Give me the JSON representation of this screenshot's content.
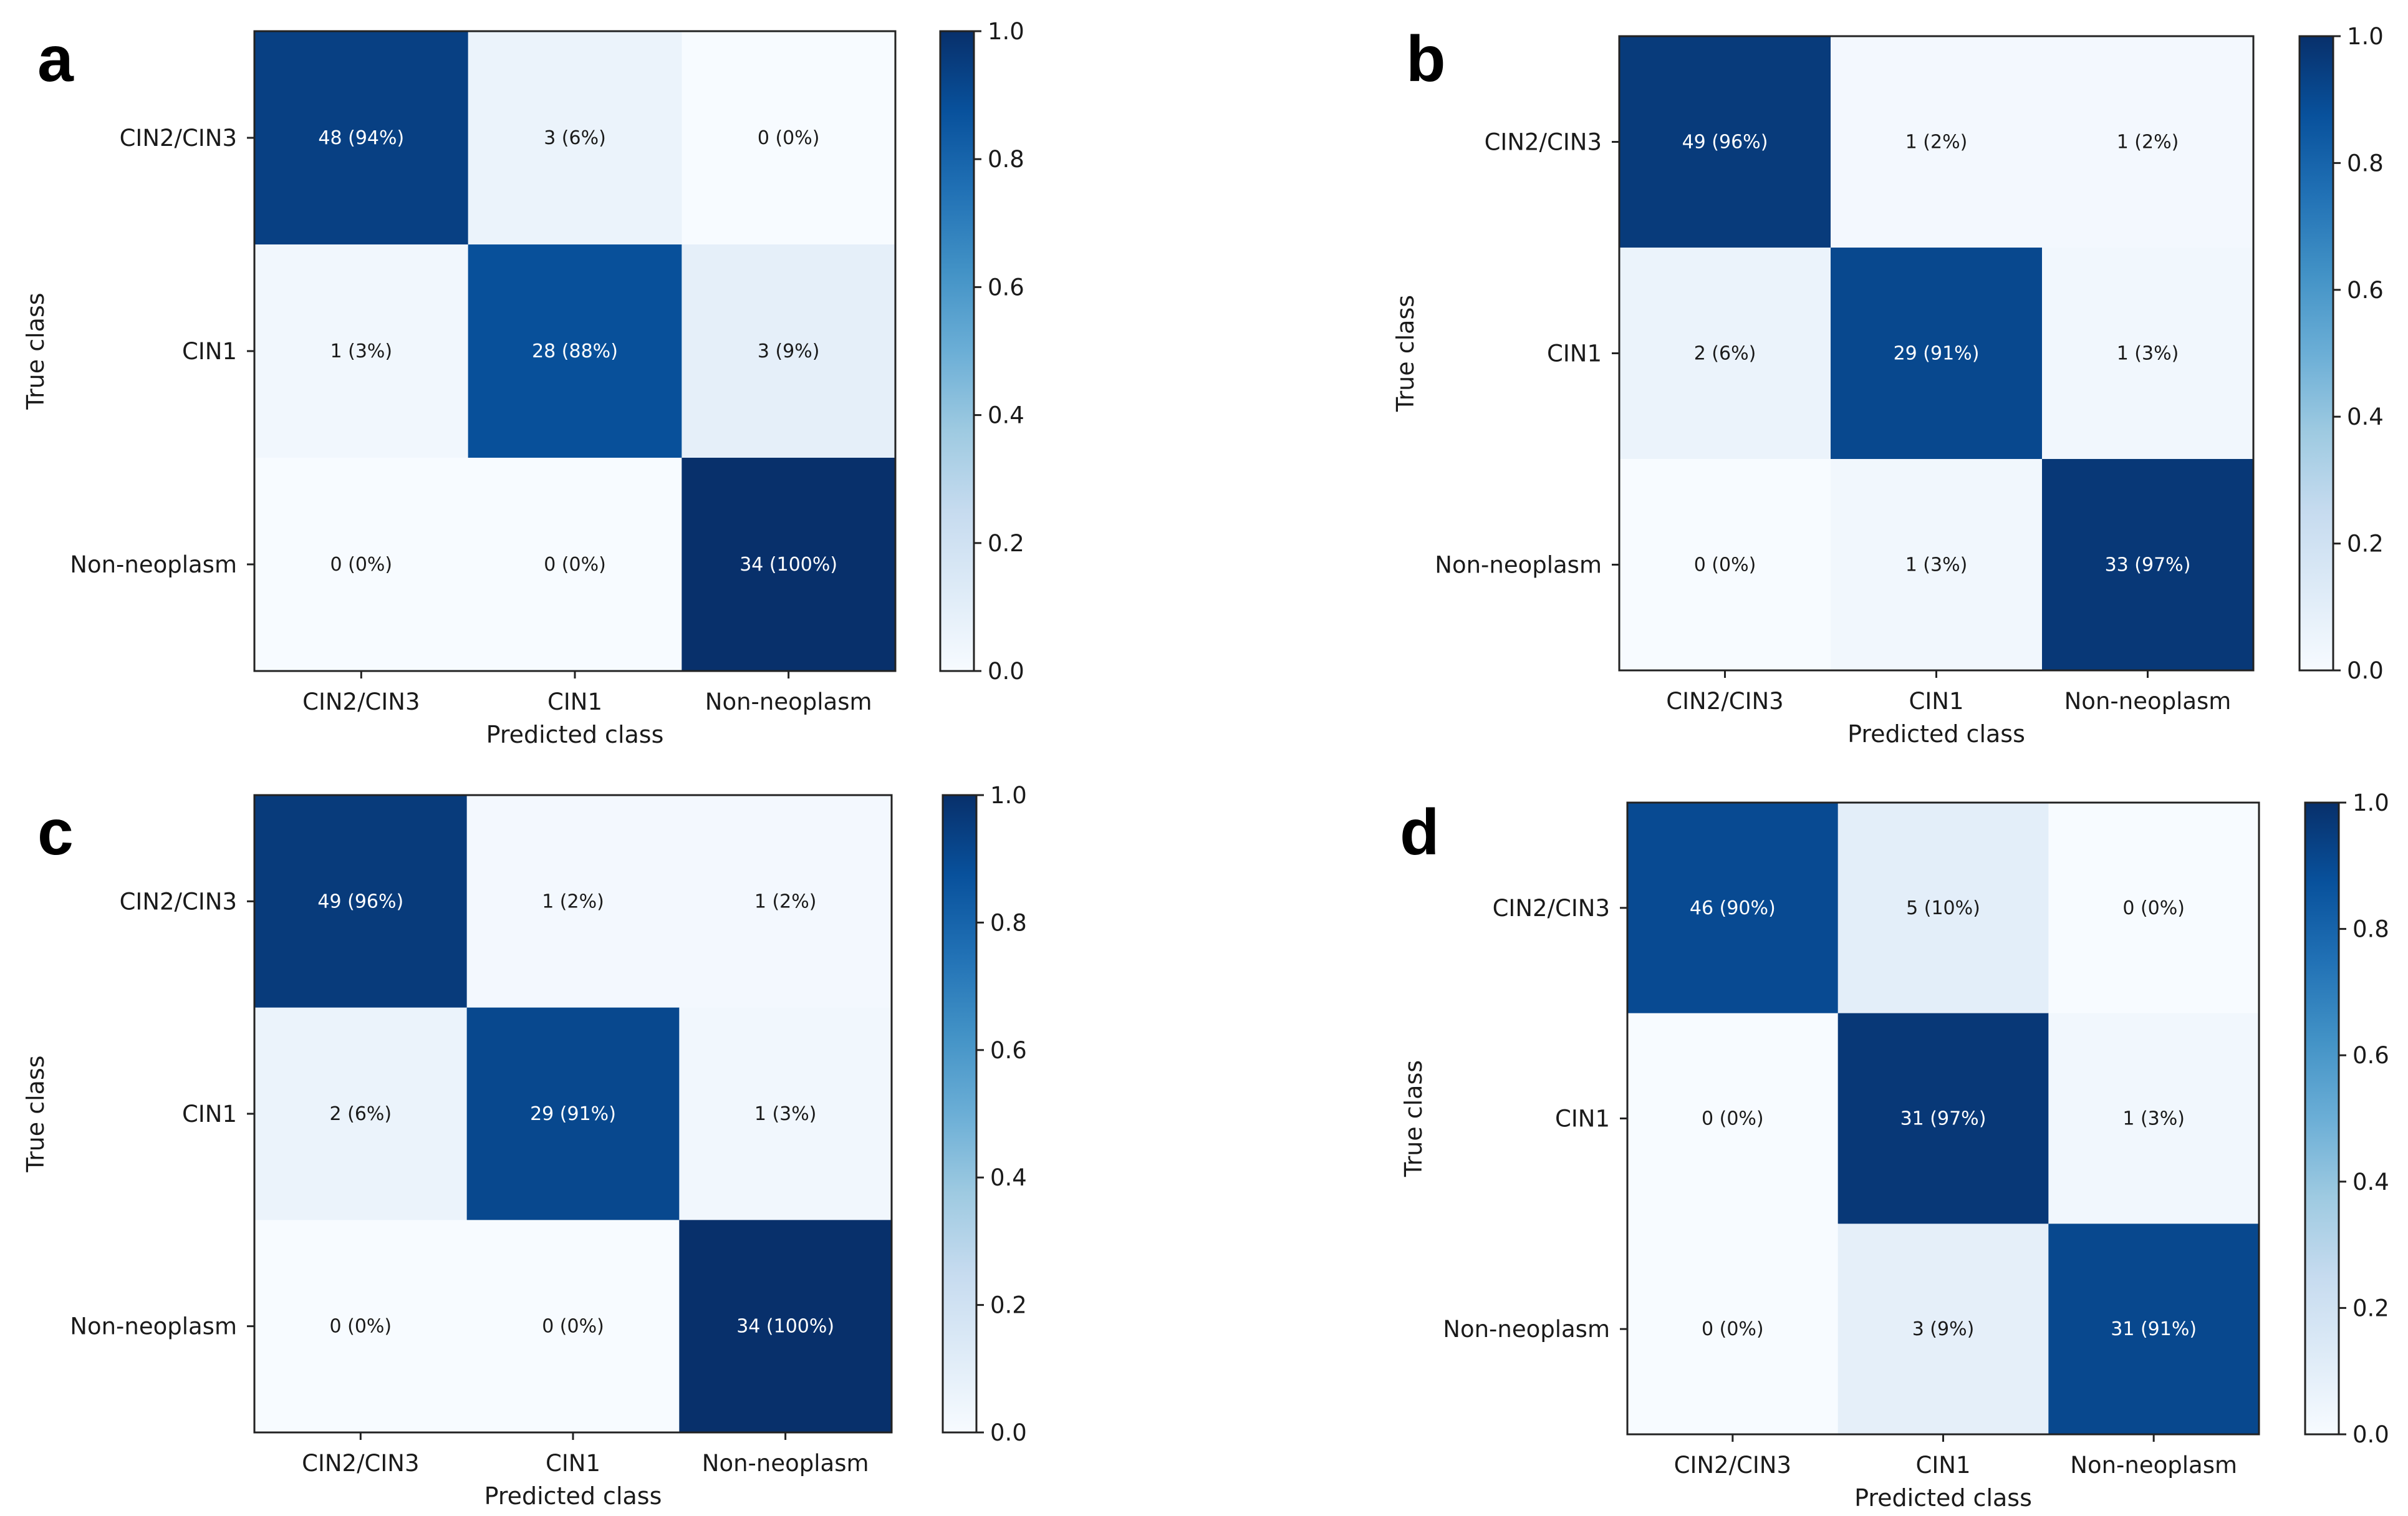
{
  "chart_data": [
    {
      "type": "heatmap",
      "panel_label": "a",
      "xlabel": "Predicted class",
      "ylabel": "True class",
      "categories": [
        "CIN2/CIN3",
        "CIN1",
        "Non-neoplasm"
      ],
      "counts": [
        [
          48,
          3,
          0
        ],
        [
          1,
          28,
          3
        ],
        [
          0,
          0,
          34
        ]
      ],
      "values": [
        [
          0.94,
          0.06,
          0.0
        ],
        [
          0.03,
          0.88,
          0.09
        ],
        [
          0.0,
          0.0,
          1.0
        ]
      ],
      "cell_labels": [
        [
          "48 (94%)",
          "3 (6%)",
          "0 (0%)"
        ],
        [
          "1 (3%)",
          "28 (88%)",
          "3 (9%)"
        ],
        [
          "0 (0%)",
          "0 (0%)",
          "34 (100%)"
        ]
      ],
      "colorbar": {
        "range": [
          0.0,
          1.0
        ],
        "ticks": [
          "0.0",
          "0.2",
          "0.4",
          "0.6",
          "0.8",
          "1.0"
        ]
      }
    },
    {
      "type": "heatmap",
      "panel_label": "b",
      "xlabel": "Predicted class",
      "ylabel": "True class",
      "categories": [
        "CIN2/CIN3",
        "CIN1",
        "Non-neoplasm"
      ],
      "counts": [
        [
          49,
          1,
          1
        ],
        [
          2,
          29,
          1
        ],
        [
          0,
          1,
          33
        ]
      ],
      "values": [
        [
          0.96,
          0.02,
          0.02
        ],
        [
          0.06,
          0.91,
          0.03
        ],
        [
          0.0,
          0.03,
          0.97
        ]
      ],
      "cell_labels": [
        [
          "49 (96%)",
          "1 (2%)",
          "1 (2%)"
        ],
        [
          "2 (6%)",
          "29 (91%)",
          "1 (3%)"
        ],
        [
          "0 (0%)",
          "1 (3%)",
          "33 (97%)"
        ]
      ],
      "colorbar": {
        "range": [
          0.0,
          1.0
        ],
        "ticks": [
          "0.0",
          "0.2",
          "0.4",
          "0.6",
          "0.8",
          "1.0"
        ]
      }
    },
    {
      "type": "heatmap",
      "panel_label": "c",
      "xlabel": "Predicted class",
      "ylabel": "True class",
      "categories": [
        "CIN2/CIN3",
        "CIN1",
        "Non-neoplasm"
      ],
      "counts": [
        [
          49,
          1,
          1
        ],
        [
          2,
          29,
          1
        ],
        [
          0,
          0,
          34
        ]
      ],
      "values": [
        [
          0.96,
          0.02,
          0.02
        ],
        [
          0.06,
          0.91,
          0.03
        ],
        [
          0.0,
          0.0,
          1.0
        ]
      ],
      "cell_labels": [
        [
          "49 (96%)",
          "1 (2%)",
          "1 (2%)"
        ],
        [
          "2 (6%)",
          "29 (91%)",
          "1 (3%)"
        ],
        [
          "0 (0%)",
          "0 (0%)",
          "34 (100%)"
        ]
      ],
      "colorbar": {
        "range": [
          0.0,
          1.0
        ],
        "ticks": [
          "0.0",
          "0.2",
          "0.4",
          "0.6",
          "0.8",
          "1.0"
        ]
      }
    },
    {
      "type": "heatmap",
      "panel_label": "d",
      "xlabel": "Predicted class",
      "ylabel": "True class",
      "categories": [
        "CIN2/CIN3",
        "CIN1",
        "Non-neoplasm"
      ],
      "counts": [
        [
          46,
          5,
          0
        ],
        [
          0,
          31,
          1
        ],
        [
          0,
          3,
          31
        ]
      ],
      "values": [
        [
          0.9,
          0.1,
          0.0
        ],
        [
          0.0,
          0.97,
          0.03
        ],
        [
          0.0,
          0.09,
          0.91
        ]
      ],
      "cell_labels": [
        [
          "46 (90%)",
          "5 (10%)",
          "0 (0%)"
        ],
        [
          "0 (0%)",
          "31 (97%)",
          "1 (3%)"
        ],
        [
          "0 (0%)",
          "3 (9%)",
          "31 (91%)"
        ]
      ],
      "colorbar": {
        "range": [
          0.0,
          1.0
        ],
        "ticks": [
          "0.0",
          "0.2",
          "0.4",
          "0.6",
          "0.8",
          "1.0"
        ]
      }
    }
  ],
  "colors": {
    "colormap": [
      "#f7fbff",
      "#deebf7",
      "#c6dbef",
      "#9ecae1",
      "#6baed6",
      "#4292c6",
      "#2171b5",
      "#08519c",
      "#08306b"
    ],
    "axis": "#222222",
    "text_dark": "#1a1a1a",
    "text_light": "#ffffff",
    "panel_label": "#000000"
  }
}
